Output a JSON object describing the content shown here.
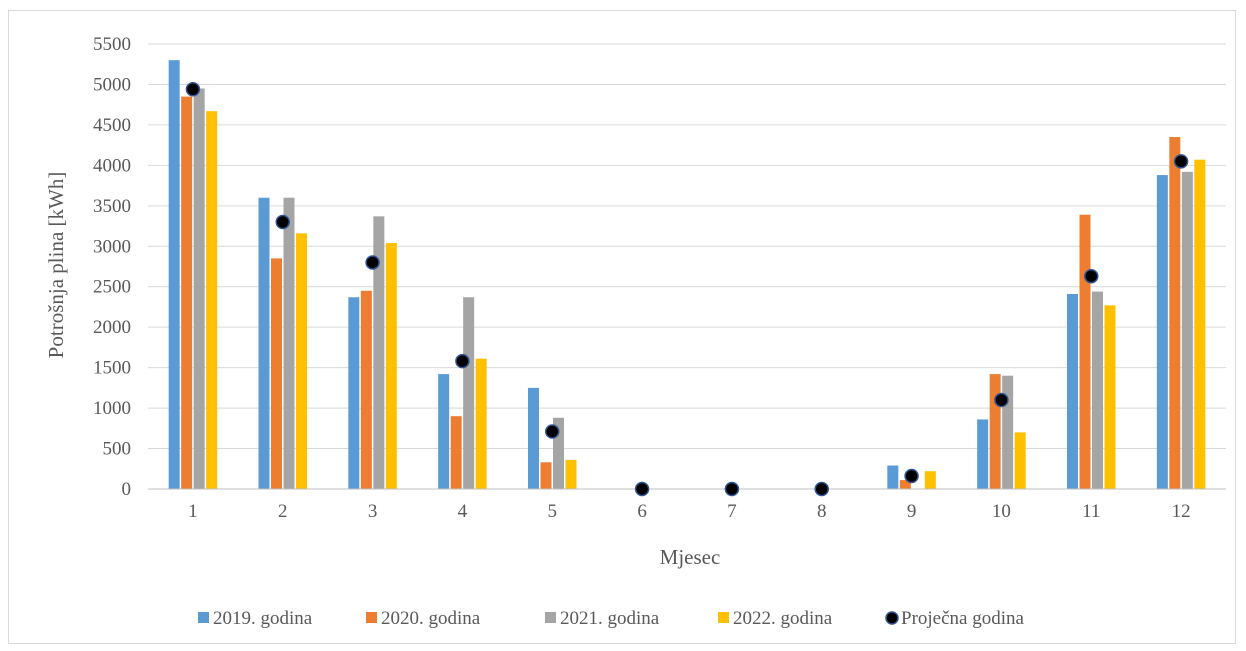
{
  "chart_data": {
    "type": "bar",
    "title": "",
    "xlabel": "Mjesec",
    "ylabel": "Potrošnja plina [kWh]",
    "categories": [
      "1",
      "2",
      "3",
      "4",
      "5",
      "6",
      "7",
      "8",
      "9",
      "10",
      "11",
      "12"
    ],
    "ylim": [
      0,
      5500
    ],
    "yticks": [
      0,
      500,
      1000,
      1500,
      2000,
      2500,
      3000,
      3500,
      4000,
      4500,
      5000,
      5500
    ],
    "grid": true,
    "legend_position": "bottom",
    "series": [
      {
        "name": "2019. godina",
        "color": "#5b9bd5",
        "values": [
          5300,
          3600,
          2370,
          1420,
          1250,
          0,
          0,
          0,
          290,
          860,
          2410,
          3880
        ]
      },
      {
        "name": "2020. godina",
        "color": "#ed7d31",
        "values": [
          4850,
          2850,
          2450,
          900,
          330,
          0,
          0,
          0,
          110,
          1420,
          3390,
          4350
        ]
      },
      {
        "name": "2021. godina",
        "color": "#a5a5a5",
        "values": [
          4950,
          3600,
          3370,
          2370,
          880,
          0,
          0,
          0,
          0,
          1400,
          2440,
          3920
        ]
      },
      {
        "name": "2022. godina",
        "color": "#ffc000",
        "values": [
          4670,
          3160,
          3040,
          1610,
          360,
          0,
          0,
          0,
          220,
          700,
          2270,
          4070
        ]
      }
    ],
    "average_series": {
      "name": "Proječna godina",
      "type": "scatter",
      "marker_color": "#000000",
      "marker_edge": "#2f5597",
      "values": [
        4940,
        3300,
        2800,
        1580,
        710,
        0,
        0,
        0,
        160,
        1100,
        2630,
        4050
      ]
    }
  }
}
